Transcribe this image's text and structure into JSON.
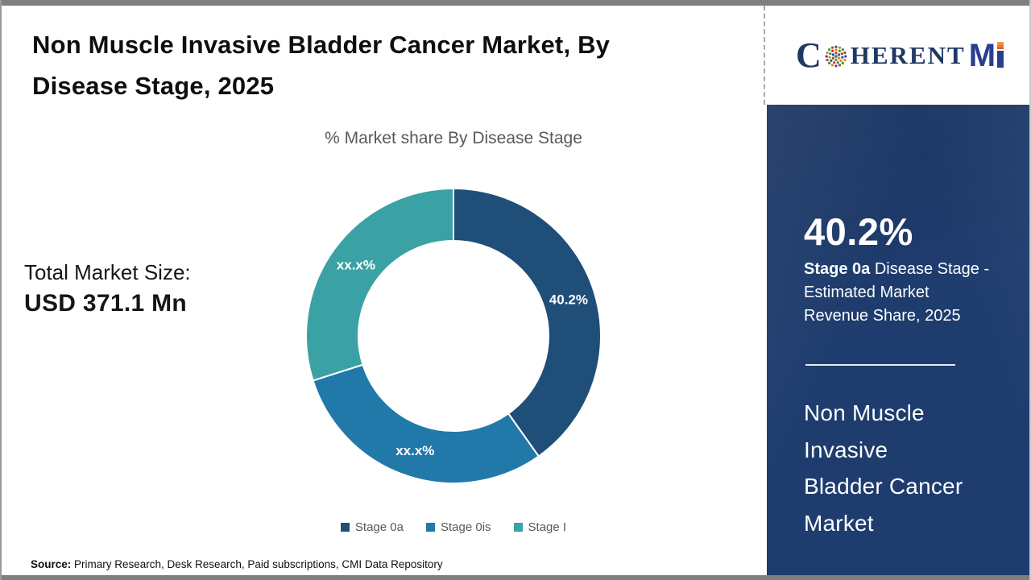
{
  "header": {
    "title_lines": [
      "Non Muscle Invasive Bladder Cancer Market, By",
      "Disease Stage, 2025"
    ]
  },
  "logo": {
    "c": "C",
    "herent": "HERENT",
    "m": "M",
    "i": "I",
    "brand_navy": "#1f3864",
    "brand_orange": "#e2572b",
    "dot_palette": [
      "#3e8e41",
      "#c0392b",
      "#2c4e9c",
      "#e67e22"
    ]
  },
  "chart_data": {
    "type": "pie",
    "variant": "donut",
    "title": "% Market share By Disease Stage",
    "categories": [
      "Stage 0a",
      "Stage 0is",
      "Stage I"
    ],
    "values": [
      40.2,
      29.9,
      29.9
    ],
    "labels": [
      "40.2%",
      "xx.x%",
      "xx.x%"
    ],
    "colors": [
      "#1f4e79",
      "#2079a9",
      "#3aa2a4"
    ],
    "start_angle": 0,
    "direction": "clockwise",
    "donut_hole_ratio": 0.645,
    "legend_position": "bottom"
  },
  "market_size": {
    "label": "Total Market Size:",
    "value": "USD 371.1 Mn"
  },
  "sidebar": {
    "stat_value": "40.2%",
    "stat_desc_bold": "Stage 0a",
    "stat_desc_line1_rest": " Disease Stage -",
    "stat_desc_line2": "Estimated Market",
    "stat_desc_line3": "Revenue Share, 2025",
    "market_name_lines": [
      "Non Muscle",
      "Invasive",
      "Bladder Cancer",
      "Market"
    ],
    "panel_color": "#1e3c6e"
  },
  "source": {
    "label": "Source:",
    "text": " Primary Research, Desk Research, Paid subscriptions, CMI Data Repository"
  }
}
